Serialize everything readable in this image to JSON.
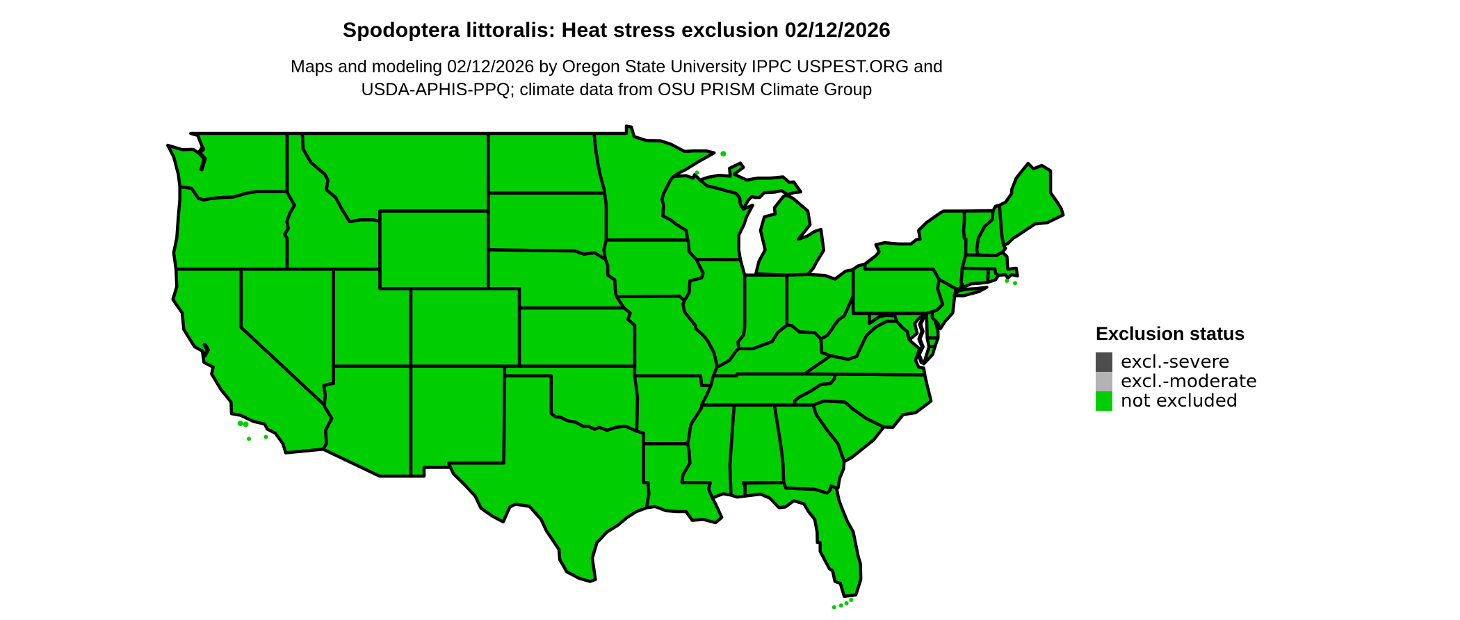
{
  "title": "Spodoptera littoralis: Heat stress exclusion 02/12/2026",
  "subtitle_line1": "Maps and modeling 02/12/2026 by Oregon State University IPPC USPEST.ORG and",
  "subtitle_line2": "USDA-APHIS-PPQ; climate data from OSU PRISM Climate Group",
  "legend": {
    "title": "Exclusion status",
    "items": [
      {
        "label": "excl.-severe",
        "color": "#4d4d4d"
      },
      {
        "label": "excl.-moderate",
        "color": "#b3b3b3"
      },
      {
        "label": "not excluded",
        "color": "#00ce00"
      }
    ]
  },
  "map": {
    "region": "contiguous United States",
    "fill_status": "not excluded",
    "fill_color": "#00ce00",
    "border_color": "#000000",
    "water_color": "#ffffff",
    "background_color": "#ffffff"
  }
}
